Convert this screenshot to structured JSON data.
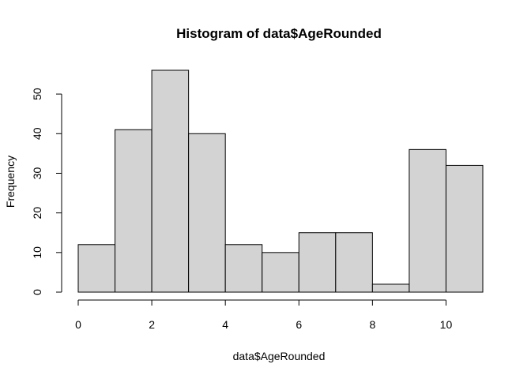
{
  "chart_data": {
    "type": "bar",
    "subtype": "histogram",
    "title": "Histogram of data$AgeRounded",
    "xlabel": "data$AgeRounded",
    "ylabel": "Frequency",
    "bins": [
      {
        "x0": 0,
        "x1": 1,
        "value": 12
      },
      {
        "x0": 1,
        "x1": 2,
        "value": 41
      },
      {
        "x0": 2,
        "x1": 3,
        "value": 56
      },
      {
        "x0": 3,
        "x1": 4,
        "value": 40
      },
      {
        "x0": 4,
        "x1": 5,
        "value": 12
      },
      {
        "x0": 5,
        "x1": 6,
        "value": 10
      },
      {
        "x0": 6,
        "x1": 7,
        "value": 15
      },
      {
        "x0": 7,
        "x1": 8,
        "value": 15
      },
      {
        "x0": 8,
        "x1": 9,
        "value": 2
      },
      {
        "x0": 9,
        "x1": 10,
        "value": 36
      },
      {
        "x0": 10,
        "x1": 11,
        "value": 32
      }
    ],
    "xlim": [
      0,
      11
    ],
    "ylim": [
      0,
      56
    ],
    "x_ticks": [
      0,
      2,
      4,
      6,
      8,
      10
    ],
    "x_tick_labels": [
      "0",
      "2",
      "4",
      "6",
      "8",
      "10"
    ],
    "y_ticks": [
      0,
      10,
      20,
      30,
      40,
      50
    ],
    "y_tick_labels": [
      "0",
      "10",
      "20",
      "30",
      "40",
      "50"
    ],
    "bar_color": "#d3d3d3",
    "grid": false
  }
}
